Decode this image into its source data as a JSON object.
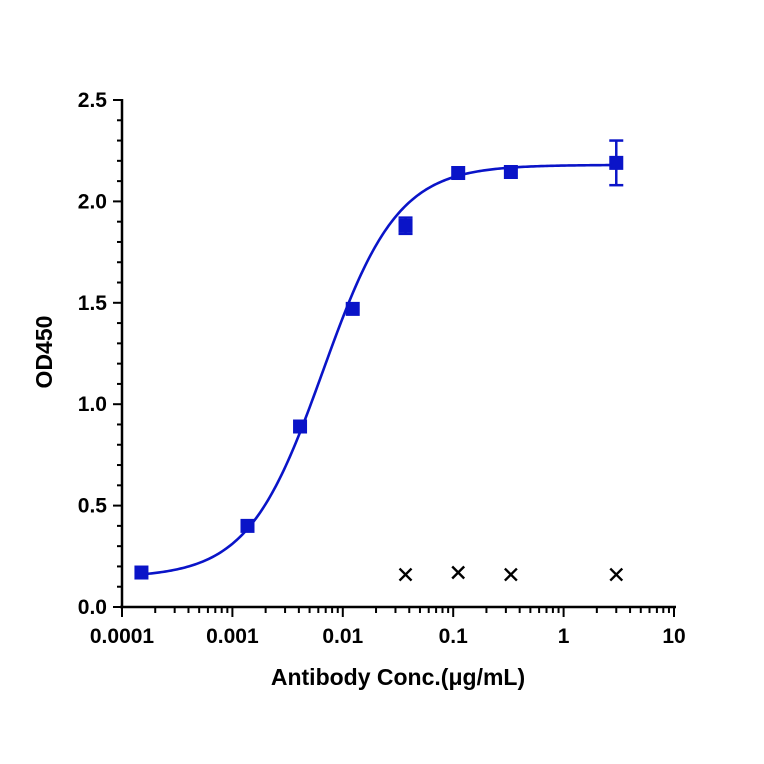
{
  "chart_data": {
    "type": "scatter",
    "title": "",
    "xlabel": "Antibody Conc.(μg/mL)",
    "ylabel": "OD450",
    "x_scale": "log",
    "xlim": [
      0.0001,
      10
    ],
    "ylim": [
      0,
      2.5
    ],
    "x_tick_labels": [
      "0.0001",
      "0.001",
      "0.01",
      "0.1",
      "1",
      "10"
    ],
    "y_tick_labels": [
      "0.0",
      "0.5",
      "1.0",
      "1.5",
      "2.0",
      "2.5"
    ],
    "grid": false,
    "legend": "none",
    "series": [
      {
        "marker": "square",
        "color": "#0a14c8",
        "points": [
          {
            "x": 0.00015,
            "y": 0.17,
            "err": 0.01
          },
          {
            "x": 0.00137,
            "y": 0.4,
            "err": 0.01
          },
          {
            "x": 0.0041,
            "y": 0.89,
            "err": 0.01
          },
          {
            "x": 0.0123,
            "y": 1.47,
            "err": 0.01
          },
          {
            "x": 0.037,
            "y": 1.88,
            "err": 0.04
          },
          {
            "x": 0.111,
            "y": 2.14,
            "err": 0.02
          },
          {
            "x": 0.333,
            "y": 2.145,
            "err": 0.01
          },
          {
            "x": 3.0,
            "y": 2.19,
            "err": 0.11
          }
        ]
      }
    ],
    "fit_curve": {
      "model": "4PL",
      "bottom": 0.145,
      "top": 2.18,
      "ec50": 0.0066,
      "hill": 1.28,
      "color": "#0a14c8"
    },
    "excluded_points": [
      {
        "x": 0.037,
        "y": 0.16
      },
      {
        "x": 0.111,
        "y": 0.17
      },
      {
        "x": 0.333,
        "y": 0.16
      },
      {
        "x": 3.0,
        "y": 0.16
      }
    ]
  }
}
